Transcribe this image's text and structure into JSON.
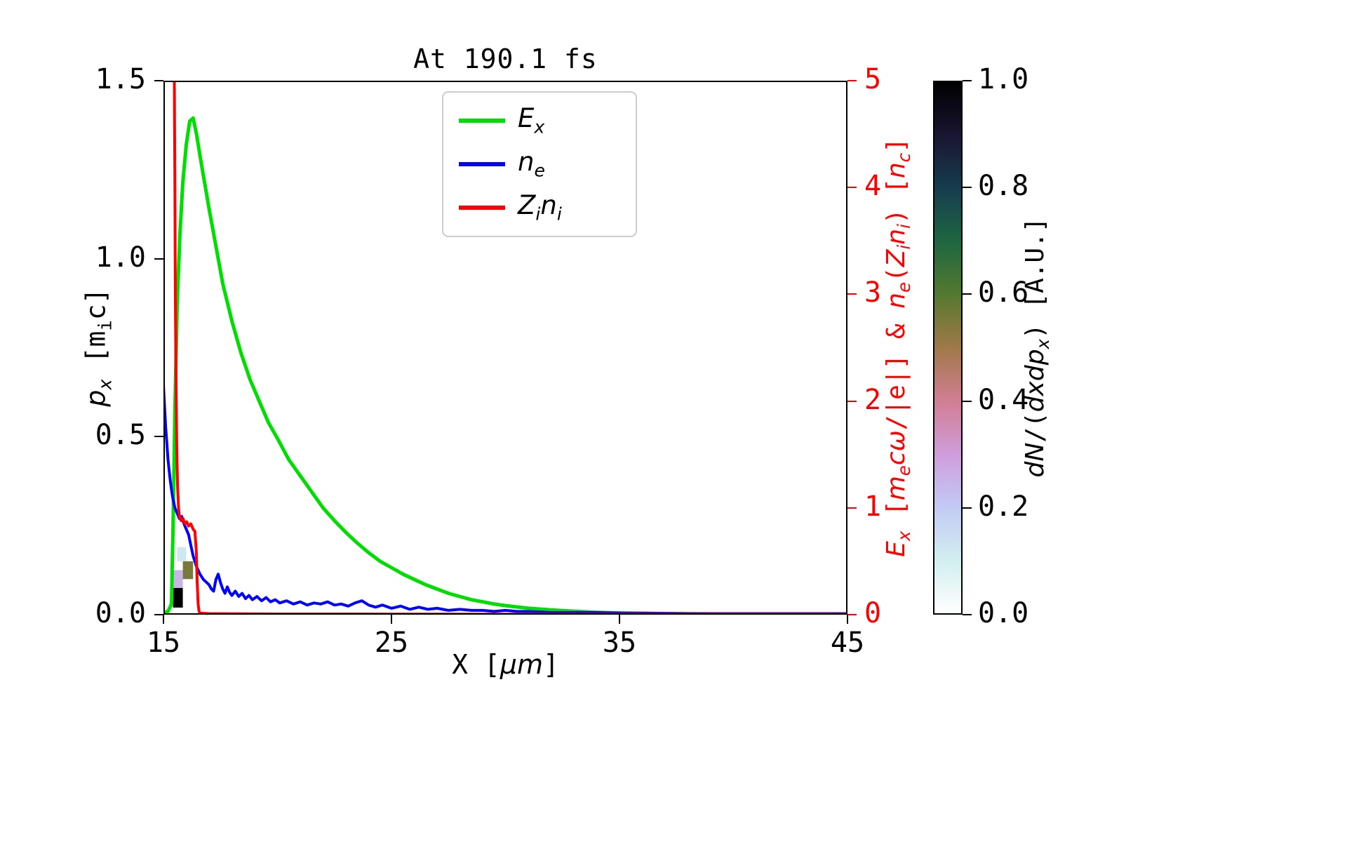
{
  "figure": {
    "background": "#ffffff"
  },
  "chart_data": {
    "type": "line",
    "title": "At 190.1 fs",
    "x_axis": {
      "label_text": "X [μm]",
      "label_segments": [
        {
          "t": "X ["
        },
        {
          "t": "μm",
          "i": 1
        },
        {
          "t": "]"
        }
      ],
      "range": [
        15,
        45
      ],
      "ticks": [
        15,
        25,
        35,
        45
      ],
      "tick_labels": [
        "15",
        "25",
        "35",
        "45"
      ]
    },
    "y_left": {
      "label_text": "px [mic]",
      "label_segments": [
        {
          "t": "p",
          "i": 1
        },
        {
          "t": "x",
          "i": 1,
          "sub": 1
        },
        {
          "t": " [m"
        },
        {
          "t": "i",
          "sub": 1
        },
        {
          "t": "c]"
        }
      ],
      "range": [
        0,
        1.5
      ],
      "ticks": [
        0,
        0.5,
        1.0,
        1.5
      ],
      "tick_labels": [
        "0.0",
        "0.5",
        "1.0",
        "1.5"
      ]
    },
    "y_right": {
      "label_text": "Ex [mecω/|e|] & ne(Zini) [nc]",
      "label_segments": [
        {
          "t": "E",
          "i": 1
        },
        {
          "t": "x",
          "i": 1,
          "sub": 1
        },
        {
          "t": " ["
        },
        {
          "t": "m",
          "i": 1
        },
        {
          "t": "e",
          "i": 1,
          "sub": 1
        },
        {
          "t": "c",
          "i": 1
        },
        {
          "t": "ω",
          "i": 1
        },
        {
          "t": "/|e|] & "
        },
        {
          "t": "n",
          "i": 1
        },
        {
          "t": "e",
          "i": 1,
          "sub": 1
        },
        {
          "t": "("
        },
        {
          "t": "Z",
          "i": 1
        },
        {
          "t": "i",
          "i": 1,
          "sub": 1
        },
        {
          "t": "n",
          "i": 1
        },
        {
          "t": "i",
          "i": 1,
          "sub": 1
        },
        {
          "t": ") ["
        },
        {
          "t": "n",
          "i": 1
        },
        {
          "t": "c",
          "i": 1,
          "sub": 1
        },
        {
          "t": "]"
        }
      ],
      "range": [
        0,
        5
      ],
      "ticks": [
        0,
        1,
        2,
        3,
        4,
        5
      ],
      "tick_labels": [
        "0",
        "1",
        "2",
        "3",
        "4",
        "5"
      ],
      "color": "#ff0000"
    },
    "legend": [
      {
        "label_text": "Ex",
        "label_segments": [
          {
            "t": "E",
            "i": 1
          },
          {
            "t": "x",
            "i": 1,
            "sub": 1
          }
        ],
        "color": "#00dd00"
      },
      {
        "label_text": "ne",
        "label_segments": [
          {
            "t": "n",
            "i": 1
          },
          {
            "t": "e",
            "i": 1,
            "sub": 1
          }
        ],
        "color": "#0000ff"
      },
      {
        "label_text": "Zini",
        "label_segments": [
          {
            "t": "Z",
            "i": 1
          },
          {
            "t": "i",
            "i": 1,
            "sub": 1
          },
          {
            "t": "n",
            "i": 1
          },
          {
            "t": "i",
            "i": 1,
            "sub": 1
          }
        ],
        "color": "#ff0000"
      }
    ],
    "series": [
      {
        "name": "Ex",
        "color": "#00dd00",
        "width": 5,
        "axis": "right",
        "points": [
          [
            15.0,
            0.02
          ],
          [
            15.2,
            0.03
          ],
          [
            15.35,
            0.1
          ],
          [
            15.42,
            0.8
          ],
          [
            15.5,
            1.9
          ],
          [
            15.6,
            2.9
          ],
          [
            15.72,
            3.55
          ],
          [
            15.85,
            4.05
          ],
          [
            16.0,
            4.4
          ],
          [
            16.15,
            4.62
          ],
          [
            16.3,
            4.65
          ],
          [
            16.45,
            4.5
          ],
          [
            16.6,
            4.3
          ],
          [
            16.8,
            4.05
          ],
          [
            17.0,
            3.8
          ],
          [
            17.3,
            3.45
          ],
          [
            17.6,
            3.1
          ],
          [
            18.0,
            2.75
          ],
          [
            18.4,
            2.45
          ],
          [
            18.8,
            2.2
          ],
          [
            19.2,
            2.0
          ],
          [
            19.6,
            1.8
          ],
          [
            20.0,
            1.65
          ],
          [
            20.5,
            1.45
          ],
          [
            21.0,
            1.3
          ],
          [
            21.5,
            1.15
          ],
          [
            22.0,
            1.0
          ],
          [
            22.5,
            0.88
          ],
          [
            23.0,
            0.77
          ],
          [
            23.5,
            0.67
          ],
          [
            24.0,
            0.58
          ],
          [
            24.5,
            0.5
          ],
          [
            25.0,
            0.44
          ],
          [
            25.5,
            0.38
          ],
          [
            26.0,
            0.33
          ],
          [
            26.5,
            0.28
          ],
          [
            27.0,
            0.24
          ],
          [
            27.5,
            0.2
          ],
          [
            28.0,
            0.17
          ],
          [
            28.5,
            0.14
          ],
          [
            29.0,
            0.12
          ],
          [
            29.5,
            0.1
          ],
          [
            30.0,
            0.085
          ],
          [
            31.0,
            0.06
          ],
          [
            32.0,
            0.045
          ],
          [
            33.0,
            0.032
          ],
          [
            34.0,
            0.022
          ],
          [
            35.0,
            0.016
          ],
          [
            36.0,
            0.012
          ],
          [
            37.0,
            0.01
          ],
          [
            38.0,
            0.008
          ],
          [
            40.0,
            0.006
          ],
          [
            42.0,
            0.005
          ],
          [
            45.0,
            0.004
          ]
        ]
      },
      {
        "name": "ne",
        "color": "#0000ff",
        "width": 4,
        "axis": "right",
        "points": [
          [
            15.0,
            2.15
          ],
          [
            15.05,
            1.95
          ],
          [
            15.1,
            1.75
          ],
          [
            15.15,
            1.6
          ],
          [
            15.2,
            1.45
          ],
          [
            15.3,
            1.25
          ],
          [
            15.4,
            1.1
          ],
          [
            15.5,
            1.0
          ],
          [
            15.6,
            0.95
          ],
          [
            15.7,
            0.9
          ],
          [
            15.8,
            0.92
          ],
          [
            15.9,
            0.85
          ],
          [
            16.0,
            0.8
          ],
          [
            16.1,
            0.75
          ],
          [
            16.2,
            0.65
          ],
          [
            16.3,
            0.55
          ],
          [
            16.45,
            0.45
          ],
          [
            16.6,
            0.38
          ],
          [
            16.75,
            0.33
          ],
          [
            16.9,
            0.3
          ],
          [
            17.0,
            0.28
          ],
          [
            17.1,
            0.24
          ],
          [
            17.2,
            0.22
          ],
          [
            17.3,
            0.33
          ],
          [
            17.4,
            0.38
          ],
          [
            17.5,
            0.3
          ],
          [
            17.6,
            0.24
          ],
          [
            17.7,
            0.2
          ],
          [
            17.8,
            0.26
          ],
          [
            17.9,
            0.21
          ],
          [
            18.0,
            0.18
          ],
          [
            18.15,
            0.22
          ],
          [
            18.3,
            0.17
          ],
          [
            18.45,
            0.2
          ],
          [
            18.6,
            0.15
          ],
          [
            18.75,
            0.18
          ],
          [
            18.9,
            0.14
          ],
          [
            19.1,
            0.17
          ],
          [
            19.3,
            0.13
          ],
          [
            19.5,
            0.16
          ],
          [
            19.7,
            0.12
          ],
          [
            19.9,
            0.14
          ],
          [
            20.1,
            0.11
          ],
          [
            20.4,
            0.13
          ],
          [
            20.7,
            0.1
          ],
          [
            21.0,
            0.12
          ],
          [
            21.3,
            0.09
          ],
          [
            21.6,
            0.11
          ],
          [
            21.9,
            0.1
          ],
          [
            22.2,
            0.12
          ],
          [
            22.5,
            0.09
          ],
          [
            22.8,
            0.1
          ],
          [
            23.1,
            0.08
          ],
          [
            23.4,
            0.11
          ],
          [
            23.7,
            0.13
          ],
          [
            24.0,
            0.09
          ],
          [
            24.3,
            0.07
          ],
          [
            24.6,
            0.09
          ],
          [
            25.0,
            0.06
          ],
          [
            25.4,
            0.08
          ],
          [
            25.8,
            0.05
          ],
          [
            26.2,
            0.07
          ],
          [
            26.6,
            0.05
          ],
          [
            27.0,
            0.06
          ],
          [
            27.5,
            0.04
          ],
          [
            28.0,
            0.05
          ],
          [
            28.5,
            0.04
          ],
          [
            29.0,
            0.04
          ],
          [
            29.5,
            0.03
          ],
          [
            30.0,
            0.04
          ],
          [
            30.5,
            0.03
          ],
          [
            31.0,
            0.03
          ],
          [
            32.0,
            0.02
          ],
          [
            33.0,
            0.02
          ],
          [
            34.0,
            0.02
          ],
          [
            35.0,
            0.015
          ],
          [
            36.0,
            0.015
          ],
          [
            38.0,
            0.01
          ],
          [
            40.0,
            0.01
          ],
          [
            42.0,
            0.01
          ],
          [
            45.0,
            0.01
          ]
        ]
      },
      {
        "name": "Zini",
        "color": "#ff0000",
        "width": 4,
        "axis": "right",
        "points": [
          [
            15.45,
            5.3
          ],
          [
            15.47,
            5.3
          ],
          [
            15.5,
            4.0
          ],
          [
            15.52,
            3.0
          ],
          [
            15.55,
            2.2
          ],
          [
            15.58,
            1.6
          ],
          [
            15.62,
            1.2
          ],
          [
            15.66,
            1.0
          ],
          [
            15.7,
            0.92
          ],
          [
            15.78,
            0.88
          ],
          [
            15.86,
            0.9
          ],
          [
            15.94,
            0.85
          ],
          [
            16.02,
            0.87
          ],
          [
            16.1,
            0.83
          ],
          [
            16.2,
            0.85
          ],
          [
            16.3,
            0.8
          ],
          [
            16.38,
            0.78
          ],
          [
            16.44,
            0.6
          ],
          [
            16.48,
            0.3
          ],
          [
            16.52,
            0.1
          ],
          [
            16.56,
            0.03
          ],
          [
            16.6,
            0.015
          ],
          [
            17.0,
            0.01
          ],
          [
            18.0,
            0.008
          ],
          [
            20.0,
            0.006
          ],
          [
            25.0,
            0.005
          ],
          [
            30.0,
            0.004
          ],
          [
            35.0,
            0.004
          ],
          [
            40.0,
            0.004
          ],
          [
            45.0,
            0.004
          ]
        ]
      }
    ],
    "heatmap": {
      "axis": "left",
      "cells": [
        {
          "x": [
            15.42,
            15.85
          ],
          "p": [
            0.02,
            0.075
          ],
          "value": 1.0
        },
        {
          "x": [
            15.42,
            15.85
          ],
          "p": [
            0.075,
            0.125
          ],
          "value": 0.25
        },
        {
          "x": [
            15.85,
            16.3
          ],
          "p": [
            0.1,
            0.15
          ],
          "value": 0.55
        },
        {
          "x": [
            15.6,
            16.0
          ],
          "p": [
            0.15,
            0.19
          ],
          "value": 0.12
        }
      ]
    },
    "colorbar": {
      "label_text": "dN/(dxdpx) [A.U.]",
      "label_segments": [
        {
          "t": "dN",
          "i": 1
        },
        {
          "t": "/("
        },
        {
          "t": "dxdp",
          "i": 1
        },
        {
          "t": "x",
          "i": 1,
          "sub": 1
        },
        {
          "t": ")"
        },
        {
          "t": " [A.U.]"
        }
      ],
      "range": [
        0,
        1
      ],
      "ticks": [
        0,
        0.2,
        0.4,
        0.6,
        0.8,
        1.0
      ],
      "tick_labels": [
        "0.0",
        "0.2",
        "0.4",
        "0.6",
        "0.8",
        "1.0"
      ],
      "colormap": "cubehelix_r",
      "stops": [
        {
          "v": 0.0,
          "c": "#ffffff"
        },
        {
          "v": 0.1,
          "c": "#d2eeef"
        },
        {
          "v": 0.2,
          "c": "#c2caf3"
        },
        {
          "v": 0.3,
          "c": "#d09dda"
        },
        {
          "v": 0.4,
          "c": "#d07e92"
        },
        {
          "v": 0.5,
          "c": "#a07949"
        },
        {
          "v": 0.6,
          "c": "#54792f"
        },
        {
          "v": 0.7,
          "c": "#1e6641"
        },
        {
          "v": 0.8,
          "c": "#163d4e"
        },
        {
          "v": 0.9,
          "c": "#1a1530"
        },
        {
          "v": 1.0,
          "c": "#000000"
        }
      ]
    }
  }
}
